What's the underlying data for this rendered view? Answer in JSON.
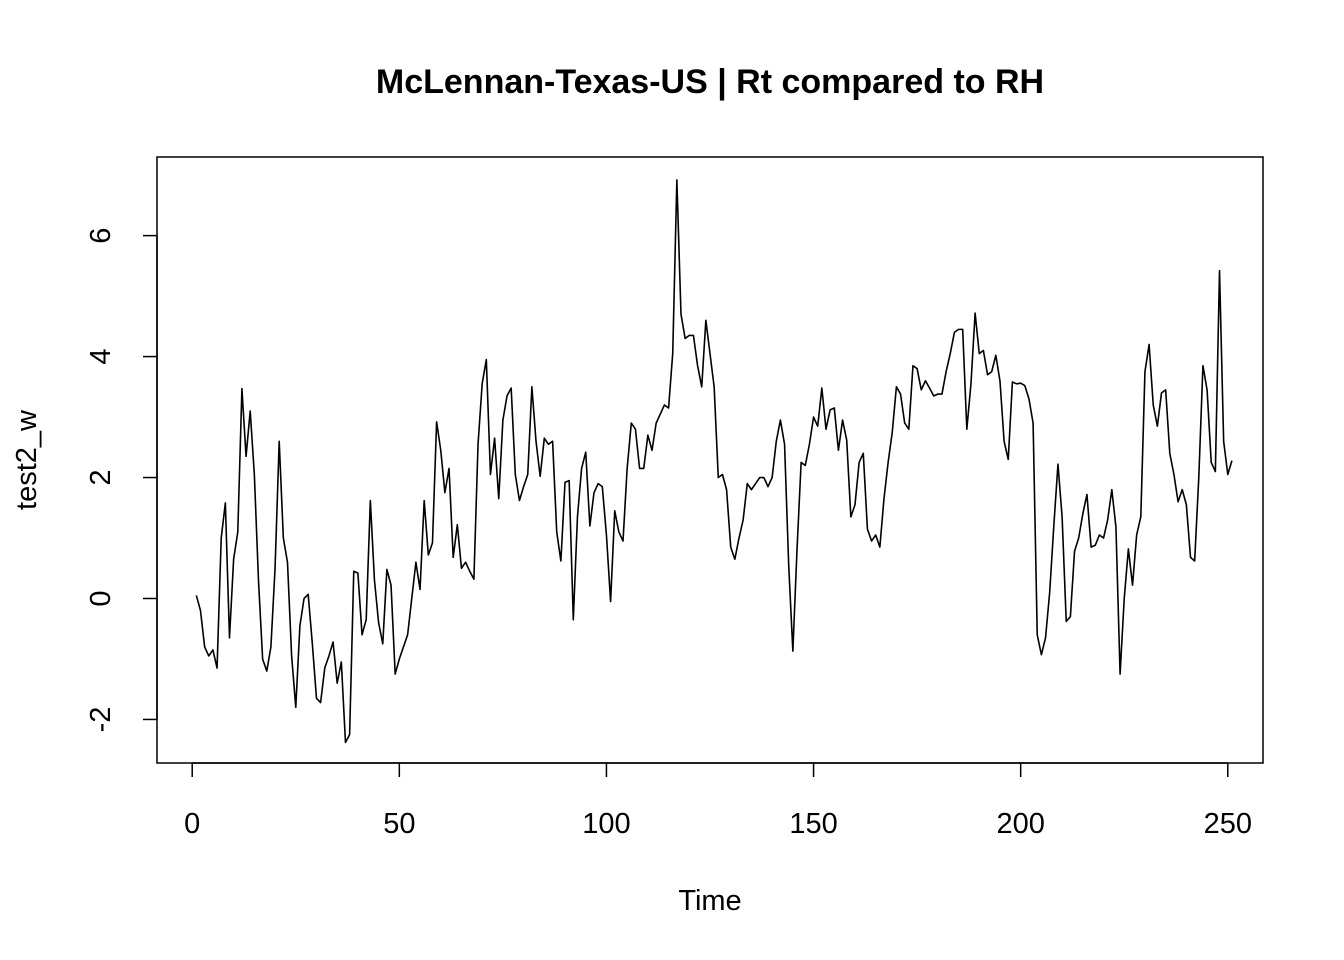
{
  "chart_data": {
    "type": "line",
    "title": "McLennan-Texas-US | Rt compared to RH",
    "xlabel": "Time",
    "ylabel": "test2_w",
    "xlim": [
      -8.5,
      258.5
    ],
    "ylim": [
      -2.72,
      7.3
    ],
    "x_ticks": [
      0,
      50,
      100,
      150,
      200,
      250
    ],
    "y_ticks": [
      -2,
      0,
      2,
      4,
      6
    ],
    "grid": false,
    "legend": "none",
    "line_color": "#000000",
    "x_start": 1,
    "values": [
      0.05,
      -0.2,
      -0.8,
      -0.95,
      -0.85,
      -1.15,
      1.0,
      1.58,
      -0.65,
      0.65,
      1.1,
      3.47,
      2.35,
      3.1,
      2.05,
      0.3,
      -1.0,
      -1.2,
      -0.8,
      0.5,
      2.6,
      1.0,
      0.6,
      -0.95,
      -1.8,
      -0.45,
      0.0,
      0.07,
      -0.75,
      -1.65,
      -1.72,
      -1.15,
      -0.95,
      -0.72,
      -1.4,
      -1.05,
      -2.38,
      -2.25,
      0.45,
      0.42,
      -0.6,
      -0.35,
      1.62,
      0.3,
      -0.4,
      -0.75,
      0.48,
      0.22,
      -1.25,
      -1.0,
      -0.8,
      -0.6,
      0.0,
      0.6,
      0.15,
      1.62,
      0.72,
      0.92,
      2.92,
      2.45,
      1.75,
      2.15,
      0.68,
      1.22,
      0.5,
      0.6,
      0.45,
      0.32,
      2.55,
      3.55,
      3.95,
      2.05,
      2.65,
      1.65,
      2.95,
      3.35,
      3.48,
      2.05,
      1.62,
      1.85,
      2.05,
      3.5,
      2.6,
      2.02,
      2.65,
      2.55,
      2.6,
      1.1,
      0.62,
      1.92,
      1.95,
      -0.35,
      1.35,
      2.15,
      2.42,
      1.2,
      1.75,
      1.9,
      1.85,
      1.05,
      -0.05,
      1.45,
      1.1,
      0.95,
      2.15,
      2.9,
      2.8,
      2.15,
      2.15,
      2.7,
      2.45,
      2.9,
      3.05,
      3.2,
      3.15,
      4.05,
      6.92,
      4.7,
      4.3,
      4.35,
      4.35,
      3.85,
      3.5,
      4.6,
      4.05,
      3.5,
      2.0,
      2.05,
      1.8,
      0.85,
      0.65,
      1.0,
      1.3,
      1.9,
      1.8,
      1.9,
      2.0,
      2.0,
      1.85,
      2.0,
      2.6,
      2.95,
      2.55,
      0.55,
      -0.87,
      0.8,
      2.25,
      2.2,
      2.55,
      3.0,
      2.85,
      3.48,
      2.8,
      3.12,
      3.15,
      2.45,
      2.95,
      2.62,
      1.35,
      1.55,
      2.25,
      2.4,
      1.15,
      0.95,
      1.05,
      0.85,
      1.65,
      2.25,
      2.75,
      3.5,
      3.38,
      2.9,
      2.8,
      3.85,
      3.8,
      3.45,
      3.6,
      3.48,
      3.35,
      3.38,
      3.38,
      3.75,
      4.05,
      4.4,
      4.45,
      4.45,
      2.8,
      3.55,
      4.72,
      4.05,
      4.1,
      3.7,
      3.75,
      4.02,
      3.6,
      2.6,
      2.3,
      3.58,
      3.55,
      3.56,
      3.52,
      3.3,
      2.9,
      -0.6,
      -0.93,
      -0.65,
      0.1,
      1.2,
      2.22,
      1.35,
      -0.38,
      -0.3,
      0.78,
      1.0,
      1.4,
      1.72,
      0.85,
      0.88,
      1.05,
      1.0,
      1.3,
      1.8,
      1.18,
      -1.25,
      0.0,
      0.82,
      0.22,
      1.05,
      1.35,
      3.75,
      4.2,
      3.2,
      2.85,
      3.4,
      3.45,
      2.4,
      2.05,
      1.6,
      1.8,
      1.55,
      0.68,
      0.62,
      2.0,
      3.85,
      3.45,
      2.25,
      2.1,
      5.42,
      2.6,
      2.05,
      2.28
    ]
  }
}
